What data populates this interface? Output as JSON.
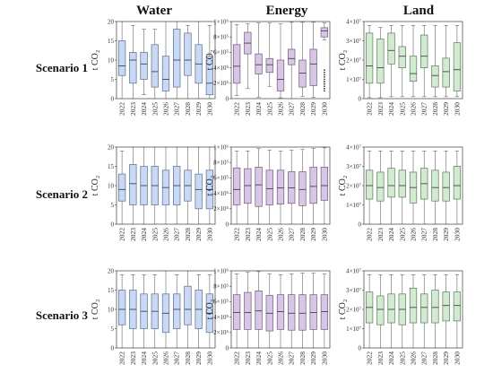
{
  "column_titles": [
    "Water",
    "Energy",
    "Land"
  ],
  "row_titles": [
    "Scenario 1",
    "Scenario 2",
    "Scenario 3"
  ],
  "y_axis_label": "t CO₂",
  "colors": {
    "water": "#c9d9f5",
    "energy": "#d9c6e6",
    "land": "#d2ead0",
    "water_edge": "#5b6b8a",
    "energy_edge": "#6b5b7a",
    "land_edge": "#5b7a5b"
  },
  "chart_data": [
    {
      "type": "box",
      "row": "Scenario 1",
      "column": "Water",
      "categories": [
        "2022",
        "2023",
        "2024",
        "2025",
        "2026",
        "2027",
        "2028",
        "2029",
        "2030"
      ],
      "ylim": [
        0,
        20
      ],
      "yticks": [
        "0",
        "5",
        "10",
        "15",
        "20"
      ],
      "boxes": [
        {
          "min": 0,
          "q1": 6,
          "median": 8.5,
          "q3": 15,
          "max": 20
        },
        {
          "min": 0,
          "q1": 4,
          "median": 10,
          "q3": 12,
          "max": 19
        },
        {
          "min": 1,
          "q1": 5,
          "median": 9,
          "q3": 12,
          "max": 18
        },
        {
          "min": 0,
          "q1": 3,
          "median": 7,
          "q3": 14,
          "max": 18
        },
        {
          "min": 0,
          "q1": 2,
          "median": 5,
          "q3": 11,
          "max": 20
        },
        {
          "min": 0,
          "q1": 3,
          "median": 10,
          "q3": 18,
          "max": 20
        },
        {
          "min": 0,
          "q1": 6,
          "median": 10,
          "q3": 17,
          "max": 19
        },
        {
          "min": 0,
          "q1": 4,
          "median": 9,
          "q3": 14,
          "max": 20
        },
        {
          "min": 0,
          "q1": 1,
          "median": 4,
          "q3": 11,
          "max": 19
        }
      ]
    },
    {
      "type": "box",
      "row": "Scenario 1",
      "column": "Energy",
      "categories": [
        "2022",
        "2023",
        "2024",
        "2025",
        "2026",
        "2027",
        "2028",
        "2029",
        "2030"
      ],
      "ylim": [
        0,
        1000000
      ],
      "yticks": [
        "0",
        "2×10⁵",
        "4×10⁵",
        "6×10⁵",
        "8×10⁵",
        "1×10⁶"
      ],
      "boxes": [
        {
          "min": 40000,
          "q1": 200000,
          "median": 420000,
          "q3": 700000,
          "max": 960000
        },
        {
          "min": 130000,
          "q1": 580000,
          "median": 720000,
          "q3": 860000,
          "max": 970000
        },
        {
          "min": 20000,
          "q1": 320000,
          "median": 440000,
          "q3": 580000,
          "max": 980000
        },
        {
          "min": 160000,
          "q1": 340000,
          "median": 440000,
          "q3": 520000,
          "max": 980000
        },
        {
          "min": 10000,
          "q1": 100000,
          "median": 250000,
          "q3": 500000,
          "max": 970000
        },
        {
          "min": 0,
          "q1": 440000,
          "median": 520000,
          "q3": 640000,
          "max": 990000
        },
        {
          "min": 30000,
          "q1": 150000,
          "median": 330000,
          "q3": 500000,
          "max": 990000
        },
        {
          "min": 20000,
          "q1": 170000,
          "median": 450000,
          "q3": 640000,
          "max": 990000
        },
        {
          "min": 760000,
          "q1": 800000,
          "median": 880000,
          "q3": 920000,
          "max": 980000,
          "outliers": [
            100000,
            130000,
            160000,
            190000,
            220000,
            250000,
            280000,
            310000,
            340000,
            370000
          ]
        }
      ]
    },
    {
      "type": "box",
      "row": "Scenario 1",
      "column": "Land",
      "categories": [
        "2022",
        "2023",
        "2024",
        "2025",
        "2026",
        "2027",
        "2028",
        "2029",
        "2030"
      ],
      "ylim": [
        0,
        40000000
      ],
      "yticks": [
        "0",
        "1×10⁷",
        "2×10⁷",
        "3×10⁷",
        "4×10⁷"
      ],
      "boxes": [
        {
          "min": 500000,
          "q1": 8000000,
          "median": 17000000,
          "q3": 34000000,
          "max": 38000000
        },
        {
          "min": 500000,
          "q1": 8000000,
          "median": 16000000,
          "q3": 31000000,
          "max": 37000000
        },
        {
          "min": 1000000,
          "q1": 18000000,
          "median": 25000000,
          "q3": 34000000,
          "max": 38000000
        },
        {
          "min": 1000000,
          "q1": 16000000,
          "median": 22000000,
          "q3": 27000000,
          "max": 38000000
        },
        {
          "min": 1000000,
          "q1": 9000000,
          "median": 13000000,
          "q3": 22000000,
          "max": 38000000
        },
        {
          "min": 1000000,
          "q1": 16000000,
          "median": 22000000,
          "q3": 33000000,
          "max": 38000000
        },
        {
          "min": 1000000,
          "q1": 6000000,
          "median": 12000000,
          "q3": 17000000,
          "max": 38000000
        },
        {
          "min": 1000000,
          "q1": 6000000,
          "median": 14000000,
          "q3": 21000000,
          "max": 38000000
        },
        {
          "min": 1000000,
          "q1": 4000000,
          "median": 15000000,
          "q3": 29000000,
          "max": 38000000
        }
      ]
    },
    {
      "type": "box",
      "row": "Scenario 2",
      "column": "Water",
      "categories": [
        "2022",
        "2023",
        "2024",
        "2025",
        "2026",
        "2027",
        "2028",
        "2029",
        "2030"
      ],
      "ylim": [
        0,
        20
      ],
      "yticks": [
        "0",
        "5",
        "10",
        "15",
        "20"
      ],
      "boxes": [
        {
          "min": 0,
          "q1": 6,
          "median": 9,
          "q3": 13,
          "max": 19
        },
        {
          "min": 0,
          "q1": 5,
          "median": 10.5,
          "q3": 15.5,
          "max": 20
        },
        {
          "min": 0,
          "q1": 5,
          "median": 10,
          "q3": 15,
          "max": 20
        },
        {
          "min": 0,
          "q1": 5,
          "median": 10,
          "q3": 15,
          "max": 20
        },
        {
          "min": 0,
          "q1": 5,
          "median": 9.5,
          "q3": 14,
          "max": 20
        },
        {
          "min": 0,
          "q1": 5,
          "median": 10,
          "q3": 15,
          "max": 20
        },
        {
          "min": 0,
          "q1": 6,
          "median": 10,
          "q3": 14,
          "max": 20
        },
        {
          "min": 0,
          "q1": 4,
          "median": 9,
          "q3": 13,
          "max": 20
        },
        {
          "min": 0,
          "q1": 4,
          "median": 9,
          "q3": 14,
          "max": 20
        }
      ]
    },
    {
      "type": "box",
      "row": "Scenario 2",
      "column": "Energy",
      "categories": [
        "2022",
        "2023",
        "2024",
        "2025",
        "2026",
        "2027",
        "2028",
        "2029",
        "2030"
      ],
      "ylim": [
        0,
        1000000
      ],
      "yticks": [
        "0",
        "2×10⁵",
        "4×10⁵",
        "6×10⁵",
        "8×10⁵",
        "1×10⁶"
      ],
      "boxes": [
        {
          "min": 0,
          "q1": 250000,
          "median": 450000,
          "q3": 730000,
          "max": 950000
        },
        {
          "min": 0,
          "q1": 270000,
          "median": 500000,
          "q3": 720000,
          "max": 950000
        },
        {
          "min": 0,
          "q1": 230000,
          "median": 510000,
          "q3": 740000,
          "max": 980000
        },
        {
          "min": 0,
          "q1": 250000,
          "median": 460000,
          "q3": 700000,
          "max": 960000
        },
        {
          "min": 0,
          "q1": 260000,
          "median": 470000,
          "q3": 700000,
          "max": 950000
        },
        {
          "min": 0,
          "q1": 270000,
          "median": 470000,
          "q3": 680000,
          "max": 960000
        },
        {
          "min": 0,
          "q1": 240000,
          "median": 450000,
          "q3": 680000,
          "max": 970000
        },
        {
          "min": 0,
          "q1": 270000,
          "median": 490000,
          "q3": 740000,
          "max": 980000
        },
        {
          "min": 0,
          "q1": 310000,
          "median": 500000,
          "q3": 740000,
          "max": 990000
        }
      ]
    },
    {
      "type": "box",
      "row": "Scenario 2",
      "column": "Land",
      "categories": [
        "2022",
        "2023",
        "2024",
        "2025",
        "2026",
        "2027",
        "2028",
        "2029",
        "2030"
      ],
      "ylim": [
        0,
        40000000
      ],
      "yticks": [
        "0",
        "1×10⁷",
        "2×10⁷",
        "3×10⁷",
        "4×10⁷"
      ],
      "boxes": [
        {
          "min": 0,
          "q1": 13000000,
          "median": 20000000,
          "q3": 28000000,
          "max": 38000000
        },
        {
          "min": 0,
          "q1": 12000000,
          "median": 19000000,
          "q3": 27000000,
          "max": 38000000
        },
        {
          "min": 0,
          "q1": 14000000,
          "median": 20000000,
          "q3": 29000000,
          "max": 38000000
        },
        {
          "min": 0,
          "q1": 14000000,
          "median": 20000000,
          "q3": 28000000,
          "max": 38000000
        },
        {
          "min": 0,
          "q1": 11000000,
          "median": 19000000,
          "q3": 27000000,
          "max": 38000000
        },
        {
          "min": 0,
          "q1": 13000000,
          "median": 21000000,
          "q3": 29000000,
          "max": 38000000
        },
        {
          "min": 0,
          "q1": 12000000,
          "median": 19000000,
          "q3": 28000000,
          "max": 38000000
        },
        {
          "min": 0,
          "q1": 12000000,
          "median": 19000000,
          "q3": 27000000,
          "max": 38000000
        },
        {
          "min": 0,
          "q1": 13000000,
          "median": 20000000,
          "q3": 30000000,
          "max": 38000000
        }
      ]
    },
    {
      "type": "box",
      "row": "Scenario 3",
      "column": "Water",
      "categories": [
        "2022",
        "2023",
        "2024",
        "2025",
        "2026",
        "2027",
        "2028",
        "2029",
        "2030"
      ],
      "ylim": [
        0,
        20
      ],
      "yticks": [
        "0",
        "5",
        "10",
        "15",
        "20"
      ],
      "boxes": [
        {
          "min": 0,
          "q1": 6,
          "median": 10,
          "q3": 15,
          "max": 19
        },
        {
          "min": 0,
          "q1": 5,
          "median": 10,
          "q3": 15,
          "max": 19
        },
        {
          "min": 0,
          "q1": 5,
          "median": 9.5,
          "q3": 14,
          "max": 19
        },
        {
          "min": 0,
          "q1": 5,
          "median": 9.5,
          "q3": 14,
          "max": 19
        },
        {
          "min": 0,
          "q1": 4,
          "median": 9,
          "q3": 14,
          "max": 20
        },
        {
          "min": 0,
          "q1": 5,
          "median": 10,
          "q3": 14,
          "max": 19
        },
        {
          "min": 0,
          "q1": 6,
          "median": 10,
          "q3": 16,
          "max": 20
        },
        {
          "min": 0,
          "q1": 5,
          "median": 10,
          "q3": 15,
          "max": 19
        },
        {
          "min": 0,
          "q1": 4,
          "median": 9,
          "q3": 14,
          "max": 19
        }
      ]
    },
    {
      "type": "box",
      "row": "Scenario 3",
      "column": "Energy",
      "categories": [
        "2022",
        "2023",
        "2024",
        "2025",
        "2026",
        "2027",
        "2028",
        "2029",
        "2030"
      ],
      "ylim": [
        0,
        1000000
      ],
      "yticks": [
        "0",
        "2×10⁵",
        "4×10⁵",
        "6×10⁵",
        "8×10⁵",
        "1×10⁶"
      ],
      "boxes": [
        {
          "min": 0,
          "q1": 240000,
          "median": 460000,
          "q3": 690000,
          "max": 960000
        },
        {
          "min": 0,
          "q1": 240000,
          "median": 460000,
          "q3": 720000,
          "max": 980000
        },
        {
          "min": 0,
          "q1": 240000,
          "median": 480000,
          "q3": 740000,
          "max": 990000
        },
        {
          "min": 0,
          "q1": 220000,
          "median": 450000,
          "q3": 680000,
          "max": 960000
        },
        {
          "min": 0,
          "q1": 240000,
          "median": 470000,
          "q3": 690000,
          "max": 950000
        },
        {
          "min": 0,
          "q1": 230000,
          "median": 450000,
          "q3": 690000,
          "max": 960000
        },
        {
          "min": 0,
          "q1": 230000,
          "median": 450000,
          "q3": 690000,
          "max": 970000
        },
        {
          "min": 0,
          "q1": 240000,
          "median": 460000,
          "q3": 690000,
          "max": 970000
        },
        {
          "min": 0,
          "q1": 240000,
          "median": 470000,
          "q3": 690000,
          "max": 960000
        }
      ]
    },
    {
      "type": "box",
      "row": "Scenario 3",
      "column": "Land",
      "categories": [
        "2022",
        "2023",
        "2024",
        "2025",
        "2026",
        "2027",
        "2028",
        "2029",
        "2030"
      ],
      "ylim": [
        0,
        40000000
      ],
      "yticks": [
        "0",
        "1×10⁷",
        "2×10⁷",
        "3×10⁷",
        "4×10⁷"
      ],
      "boxes": [
        {
          "min": 0,
          "q1": 13000000,
          "median": 21000000,
          "q3": 29000000,
          "max": 38000000
        },
        {
          "min": 0,
          "q1": 12000000,
          "median": 20000000,
          "q3": 27000000,
          "max": 38000000
        },
        {
          "min": 0,
          "q1": 13000000,
          "median": 20000000,
          "q3": 28000000,
          "max": 38000000
        },
        {
          "min": 0,
          "q1": 12000000,
          "median": 20000000,
          "q3": 28000000,
          "max": 38000000
        },
        {
          "min": 0,
          "q1": 13000000,
          "median": 21000000,
          "q3": 31000000,
          "max": 38000000
        },
        {
          "min": 0,
          "q1": 13000000,
          "median": 21000000,
          "q3": 28000000,
          "max": 38000000
        },
        {
          "min": 0,
          "q1": 13000000,
          "median": 21000000,
          "q3": 30000000,
          "max": 38000000
        },
        {
          "min": 0,
          "q1": 14000000,
          "median": 22000000,
          "q3": 29000000,
          "max": 38000000
        },
        {
          "min": 0,
          "q1": 14000000,
          "median": 22000000,
          "q3": 29000000,
          "max": 38000000
        }
      ]
    }
  ]
}
